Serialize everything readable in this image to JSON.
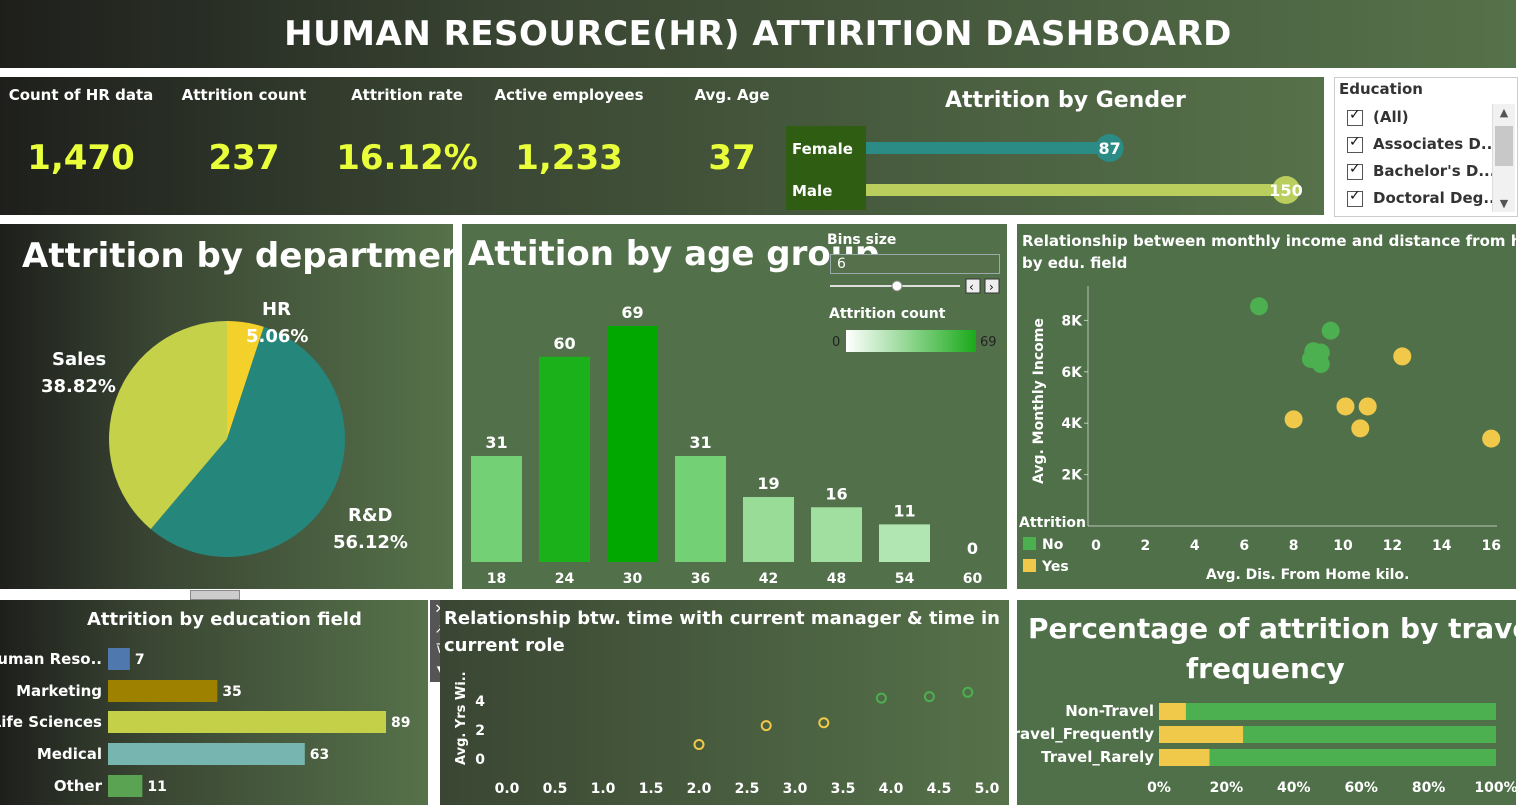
{
  "title": "HUMAN RESOURCE(HR) ATTIRITION DASHBOARD",
  "kpis": [
    {
      "label": "Count of HR data",
      "value": "1,470"
    },
    {
      "label": "Attrition count",
      "value": "237"
    },
    {
      "label": "Attrition rate",
      "value": "16.12%"
    },
    {
      "label": "Active employees",
      "value": "1,233"
    },
    {
      "label": "Avg. Age",
      "value": "37"
    }
  ],
  "education_filter": {
    "header": "Education",
    "items": [
      "(All)",
      "Associates D...",
      "Bachelor's D...",
      "Doctoral Deg..."
    ]
  },
  "colors": {
    "female": "#2a8c84",
    "male": "#b9ce5c",
    "hr": "#f4d12a",
    "rnd": "#25867c",
    "sales": "#c6d14a",
    "no": "#4caf50",
    "yes": "#f0c94a",
    "edu_human": "#4f79ae",
    "edu_marketing": "#9f8100",
    "edu_life": "#c4d048",
    "edu_medical": "#77b6b0",
    "edu_other": "#5aa352"
  },
  "gender": {
    "title": "Attrition by Gender",
    "labels": [
      "Female",
      "Male"
    ],
    "values": [
      87,
      150
    ],
    "value_labels": [
      "87",
      "150"
    ]
  },
  "department": {
    "title": "Attrition by department",
    "slices": [
      {
        "name": "HR",
        "pct": 5.06,
        "label": "5.06%"
      },
      {
        "name": "R&D",
        "pct": 56.12,
        "label": "56.12%"
      },
      {
        "name": "Sales",
        "pct": 38.82,
        "label": "38.82%"
      }
    ]
  },
  "age_group": {
    "title": "Attition by age group",
    "bins_label": "Bins size",
    "bins_value": "6",
    "legend_title": "Attrition count",
    "legend_min": "0",
    "legend_max": "69",
    "chart_data": {
      "type": "bar",
      "categories": [
        "18",
        "24",
        "30",
        "36",
        "42",
        "48",
        "54",
        "60"
      ],
      "values": [
        31,
        60,
        69,
        31,
        19,
        16,
        11,
        0
      ]
    }
  },
  "income_distance": {
    "title": "Relationship between monthly income and distance from home",
    "title2": "by edu. field",
    "ylabel": "Avg. Monthly Income",
    "xlabel": "Avg. Dis. From Home kilo.",
    "legend_title": "Attrition",
    "legend": [
      "No",
      "Yes"
    ],
    "x_ticks": [
      "0",
      "2",
      "4",
      "6",
      "8",
      "10",
      "12",
      "14",
      "16"
    ],
    "y_ticks": [
      "2K",
      "4K",
      "6K",
      "8K"
    ],
    "chart_data": {
      "type": "scatter",
      "series": [
        {
          "name": "No",
          "points": [
            [
              6.6,
              8550
            ],
            [
              9.5,
              7600
            ],
            [
              8.8,
              6800
            ],
            [
              9.1,
              6750
            ],
            [
              8.7,
              6500
            ],
            [
              9.1,
              6300
            ]
          ]
        },
        {
          "name": "Yes",
          "points": [
            [
              12.4,
              6600
            ],
            [
              10.1,
              4650
            ],
            [
              11.0,
              4650
            ],
            [
              8.0,
              4150
            ],
            [
              10.7,
              3800
            ],
            [
              16.0,
              3400
            ]
          ]
        }
      ],
      "xlim": [
        0,
        16.5
      ],
      "ylim": [
        0,
        9000
      ]
    }
  },
  "education_field": {
    "title": "Attrition by education field",
    "chart_data": {
      "type": "bar",
      "categories": [
        "Human Reso..",
        "Marketing",
        "Life Sciences",
        "Medical",
        "Other"
      ],
      "values": [
        7,
        35,
        89,
        63,
        11
      ]
    }
  },
  "manager_role": {
    "title": "Relationship btw. time with current manager & time in",
    "title2": "current role",
    "ylabel": "Avg. Yrs Wi..",
    "x_ticks": [
      "0.0",
      "0.5",
      "1.0",
      "1.5",
      "2.0",
      "2.5",
      "3.0",
      "3.5",
      "4.0",
      "4.5",
      "5.0"
    ],
    "y_ticks": [
      "0",
      "2",
      "4"
    ],
    "chart_data": {
      "type": "scatter",
      "series": [
        {
          "name": "Yes",
          "points": [
            [
              2.0,
              1.0
            ],
            [
              2.7,
              2.3
            ],
            [
              3.3,
              2.5
            ]
          ]
        },
        {
          "name": "No",
          "points": [
            [
              3.9,
              4.2
            ],
            [
              4.4,
              4.3
            ],
            [
              4.8,
              4.6
            ]
          ]
        }
      ],
      "xlim": [
        0,
        5.0
      ],
      "ylim": [
        -0.5,
        5.5
      ]
    }
  },
  "travel": {
    "title": "Percentage of attrition by travel",
    "title2": "frequency",
    "x_ticks": [
      "0%",
      "20%",
      "40%",
      "60%",
      "80%",
      "100%"
    ],
    "chart_data": {
      "type": "bar",
      "stacked": true,
      "categories": [
        "Non-Travel",
        "Travel_Frequently",
        "Travel_Rarely"
      ],
      "series": [
        {
          "name": "Yes",
          "values": [
            8,
            25,
            15
          ]
        },
        {
          "name": "No",
          "values": [
            92,
            75,
            85
          ]
        }
      ]
    }
  }
}
